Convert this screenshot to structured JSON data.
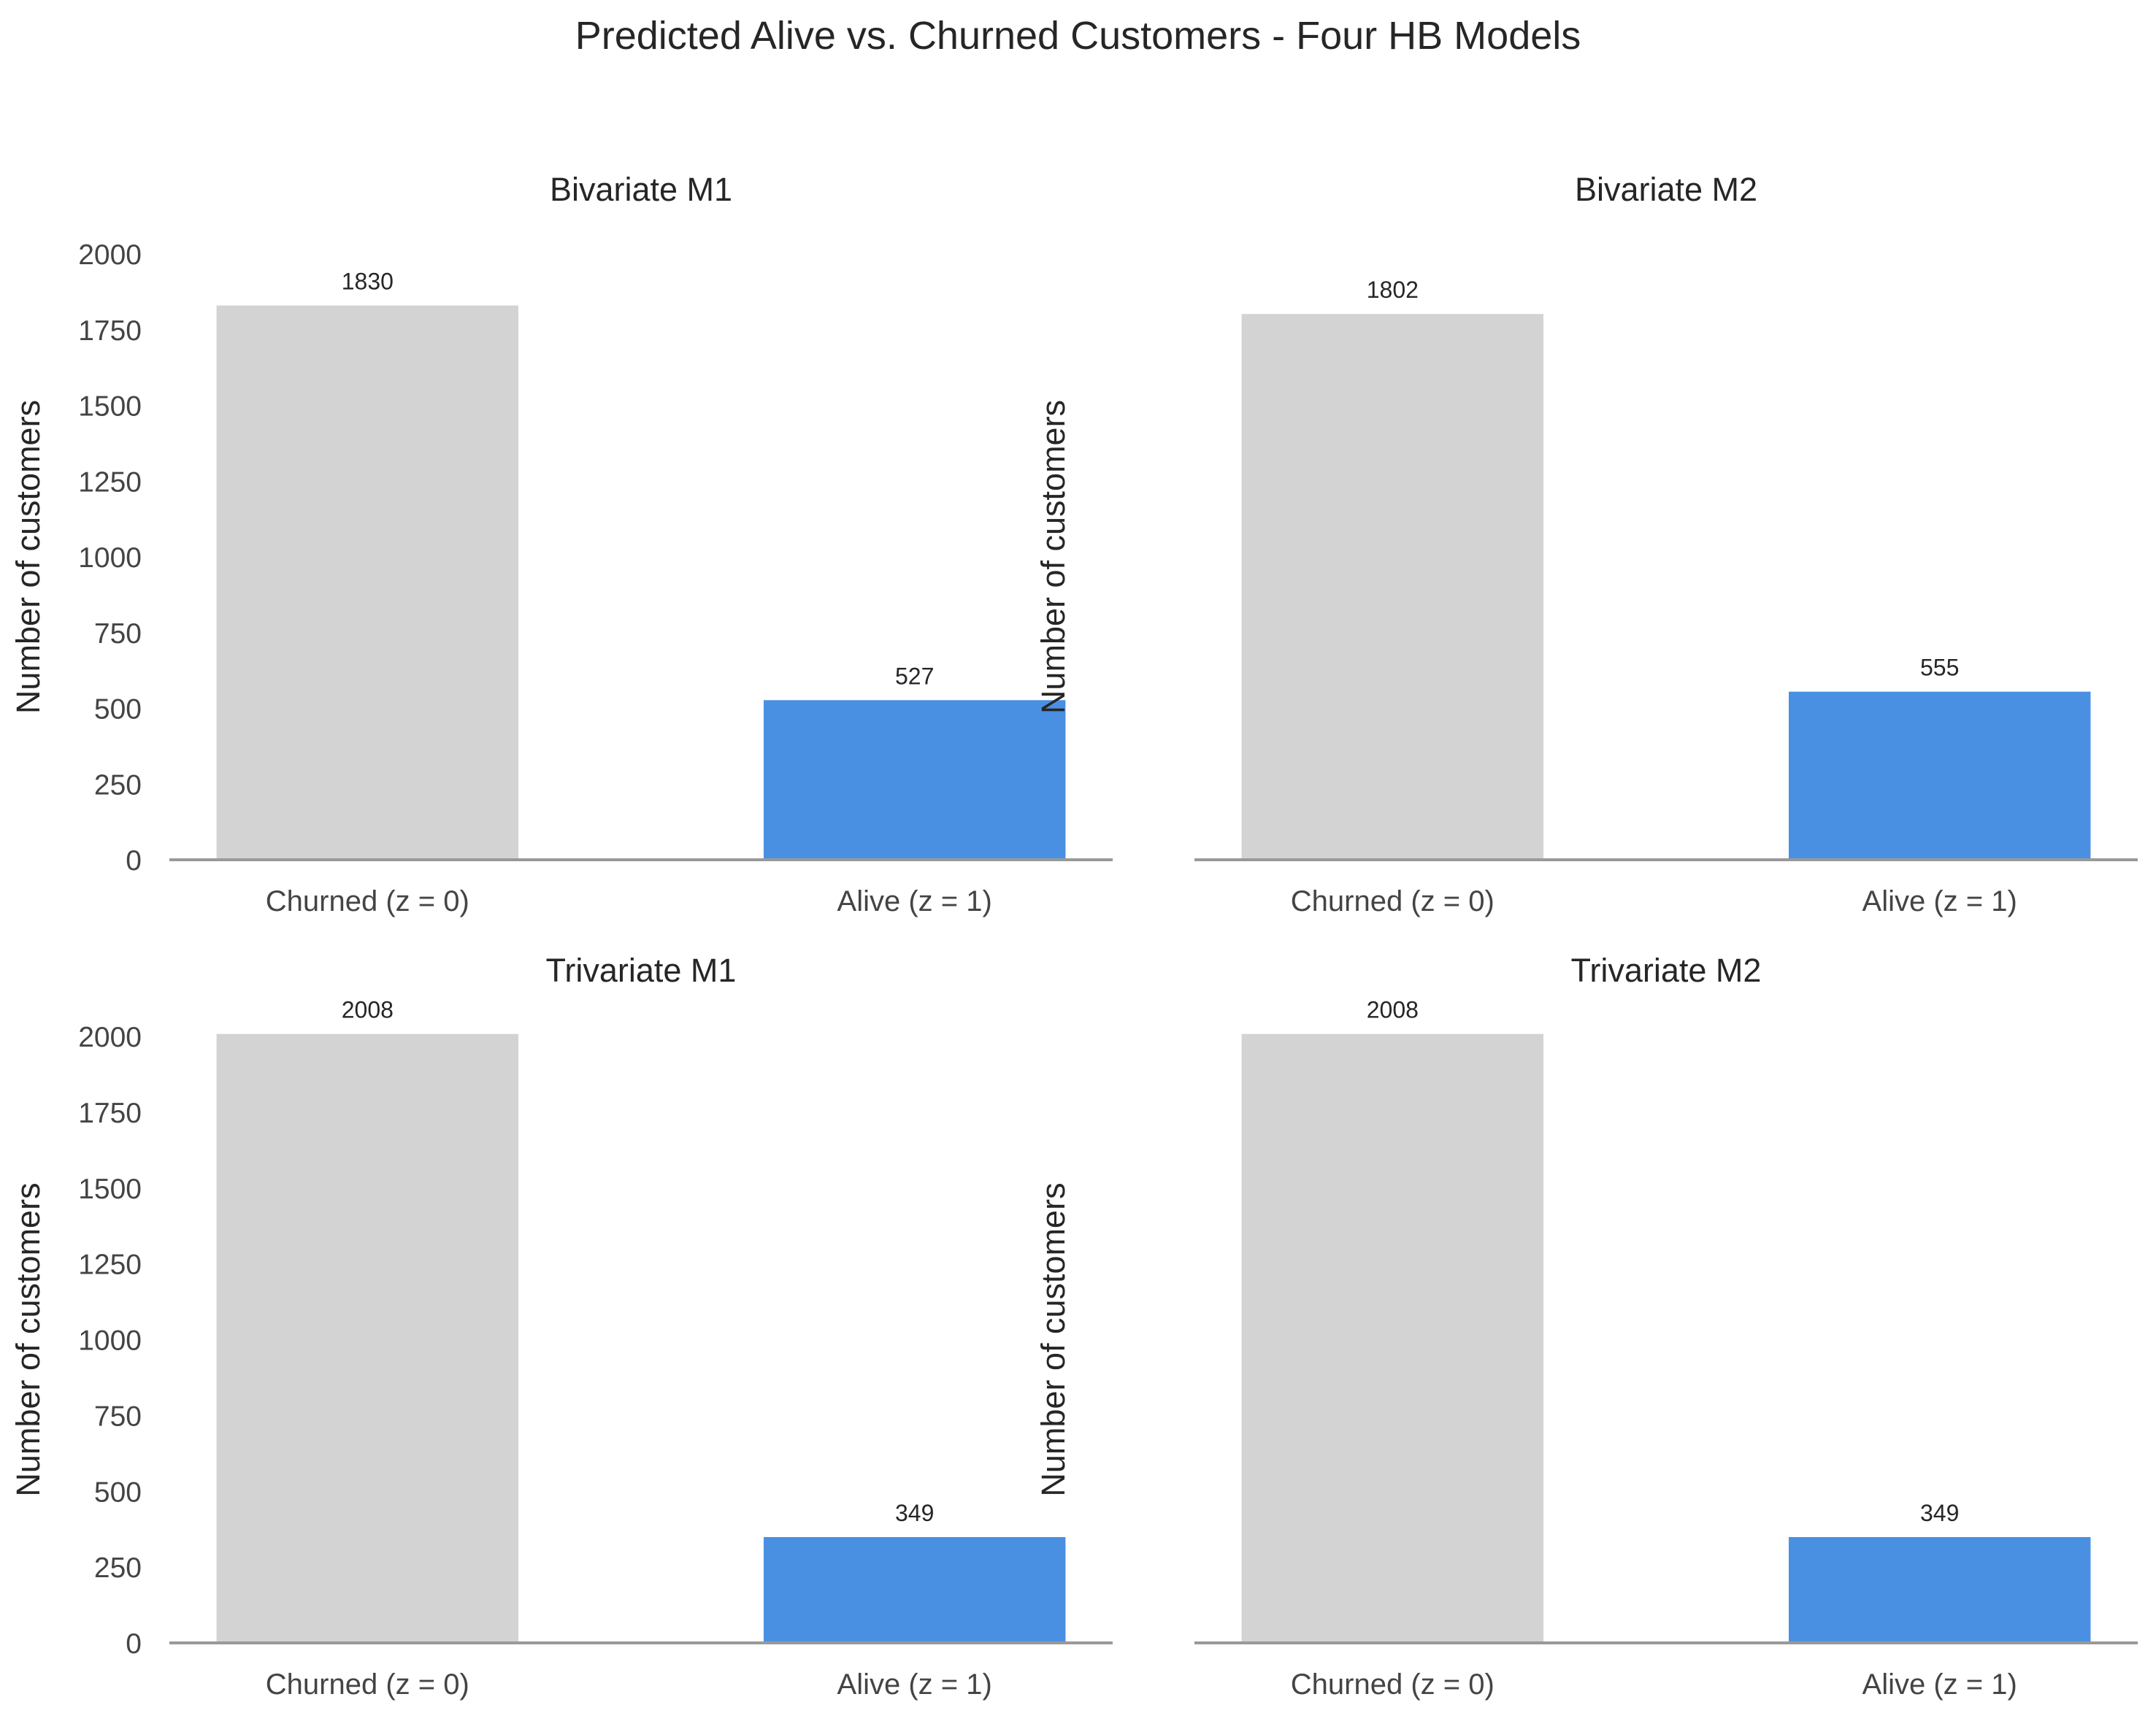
{
  "figure": {
    "suptitle": "Predicted Alive vs. Churned Customers - Four HB Models"
  },
  "colors": {
    "churned": "#d3d3d3",
    "alive": "#4a90e2",
    "axis": "#999999",
    "text": "#262626",
    "tick_text": "#444444"
  },
  "chart_data": [
    {
      "type": "bar",
      "title": "Bivariate M1",
      "categories": [
        "Churned (z = 0)",
        "Alive (z = 1)"
      ],
      "values": [
        1830,
        527
      ],
      "data_labels": [
        "1830",
        "527"
      ],
      "ylabel": "Number of customers",
      "xlabel": "",
      "ylim": [
        0,
        2000
      ],
      "yticks": [
        "0",
        "250",
        "500",
        "750",
        "1000",
        "1250",
        "1500",
        "1750",
        "2000"
      ],
      "show_yticks": true,
      "grid": false
    },
    {
      "type": "bar",
      "title": "Bivariate M2",
      "categories": [
        "Churned (z = 0)",
        "Alive (z = 1)"
      ],
      "values": [
        1802,
        555
      ],
      "data_labels": [
        "1802",
        "555"
      ],
      "ylabel": "Number of customers",
      "xlabel": "",
      "ylim": [
        0,
        2000
      ],
      "yticks": [],
      "show_yticks": false,
      "grid": false
    },
    {
      "type": "bar",
      "title": "Trivariate M1",
      "categories": [
        "Churned (z = 0)",
        "Alive (z = 1)"
      ],
      "values": [
        2008,
        349
      ],
      "data_labels": [
        "2008",
        "349"
      ],
      "ylabel": "Number of customers",
      "xlabel": "",
      "ylim": [
        0,
        2000
      ],
      "yticks": [
        "0",
        "250",
        "500",
        "750",
        "1000",
        "1250",
        "1500",
        "1750",
        "2000"
      ],
      "show_yticks": true,
      "grid": false
    },
    {
      "type": "bar",
      "title": "Trivariate M2",
      "categories": [
        "Churned (z = 0)",
        "Alive (z = 1)"
      ],
      "values": [
        2008,
        349
      ],
      "data_labels": [
        "2008",
        "349"
      ],
      "ylabel": "Number of customers",
      "xlabel": "",
      "ylim": [
        0,
        2000
      ],
      "yticks": [],
      "show_yticks": false,
      "grid": false
    }
  ]
}
